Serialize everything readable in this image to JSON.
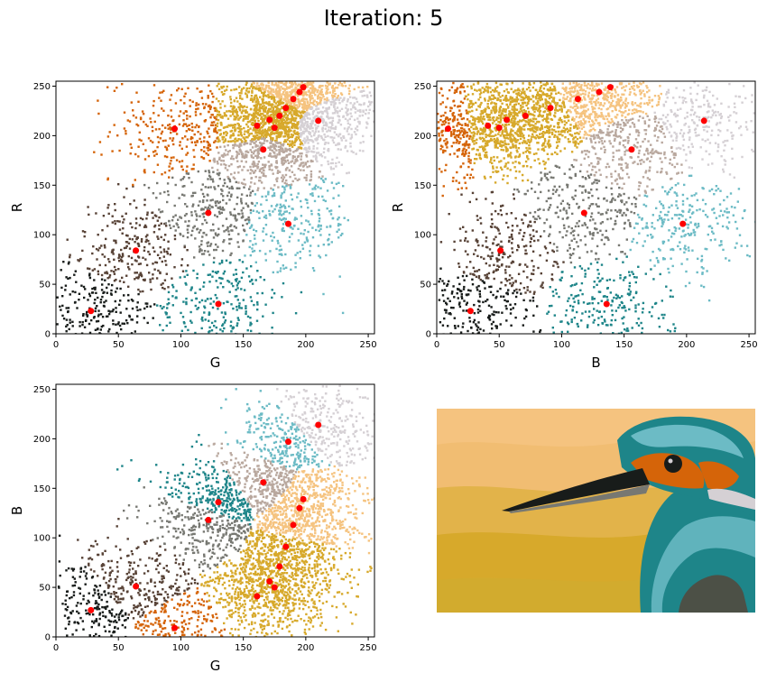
{
  "title": "Iteration: 5",
  "palette": [
    "#181c1a",
    "#574236",
    "#777872",
    "#1e8589",
    "#6cbbc5",
    "#b9a89e",
    "#d5d0d4",
    "#d7a92b",
    "#f5c37f",
    "#d56409"
  ],
  "chart_data": [
    {
      "type": "scatter",
      "panel": "top-left",
      "xlabel": "G",
      "ylabel": "R",
      "xlim": [
        0,
        255
      ],
      "ylim": [
        0,
        255
      ],
      "xticks": [
        0,
        50,
        100,
        150,
        200,
        250
      ],
      "yticks": [
        0,
        50,
        100,
        150,
        200,
        250
      ],
      "centroids": [
        {
          "x": 28,
          "y": 23
        },
        {
          "x": 64,
          "y": 84
        },
        {
          "x": 95,
          "y": 207
        },
        {
          "x": 122,
          "y": 122
        },
        {
          "x": 130,
          "y": 30
        },
        {
          "x": 161,
          "y": 210
        },
        {
          "x": 166,
          "y": 186
        },
        {
          "x": 171,
          "y": 216
        },
        {
          "x": 175,
          "y": 208
        },
        {
          "x": 179,
          "y": 220
        },
        {
          "x": 184,
          "y": 228
        },
        {
          "x": 186,
          "y": 111
        },
        {
          "x": 190,
          "y": 237
        },
        {
          "x": 195,
          "y": 244
        },
        {
          "x": 198,
          "y": 249
        },
        {
          "x": 210,
          "y": 215
        }
      ]
    },
    {
      "type": "scatter",
      "panel": "top-right",
      "xlabel": "B",
      "ylabel": "R",
      "xlim": [
        0,
        255
      ],
      "ylim": [
        0,
        255
      ],
      "xticks": [
        0,
        50,
        100,
        150,
        200,
        250
      ],
      "yticks": [
        0,
        50,
        100,
        150,
        200,
        250
      ],
      "centroids": [
        {
          "x": 9,
          "y": 207
        },
        {
          "x": 27,
          "y": 23
        },
        {
          "x": 41,
          "y": 210
        },
        {
          "x": 50,
          "y": 208
        },
        {
          "x": 51,
          "y": 84
        },
        {
          "x": 56,
          "y": 216
        },
        {
          "x": 71,
          "y": 220
        },
        {
          "x": 91,
          "y": 228
        },
        {
          "x": 113,
          "y": 237
        },
        {
          "x": 118,
          "y": 122
        },
        {
          "x": 130,
          "y": 244
        },
        {
          "x": 136,
          "y": 30
        },
        {
          "x": 139,
          "y": 249
        },
        {
          "x": 156,
          "y": 186
        },
        {
          "x": 197,
          "y": 111
        },
        {
          "x": 214,
          "y": 215
        }
      ]
    },
    {
      "type": "scatter",
      "panel": "bottom-left",
      "xlabel": "G",
      "ylabel": "B",
      "xlim": [
        0,
        255
      ],
      "ylim": [
        0,
        255
      ],
      "xticks": [
        0,
        50,
        100,
        150,
        200,
        250
      ],
      "yticks": [
        0,
        50,
        100,
        150,
        200,
        250
      ],
      "centroids": [
        {
          "x": 28,
          "y": 27
        },
        {
          "x": 64,
          "y": 51
        },
        {
          "x": 95,
          "y": 9
        },
        {
          "x": 122,
          "y": 118
        },
        {
          "x": 130,
          "y": 136
        },
        {
          "x": 161,
          "y": 41
        },
        {
          "x": 166,
          "y": 156
        },
        {
          "x": 171,
          "y": 56
        },
        {
          "x": 175,
          "y": 50
        },
        {
          "x": 179,
          "y": 71
        },
        {
          "x": 184,
          "y": 91
        },
        {
          "x": 186,
          "y": 197
        },
        {
          "x": 190,
          "y": 113
        },
        {
          "x": 195,
          "y": 130
        },
        {
          "x": 198,
          "y": 139
        },
        {
          "x": 210,
          "y": 214
        }
      ]
    }
  ]
}
